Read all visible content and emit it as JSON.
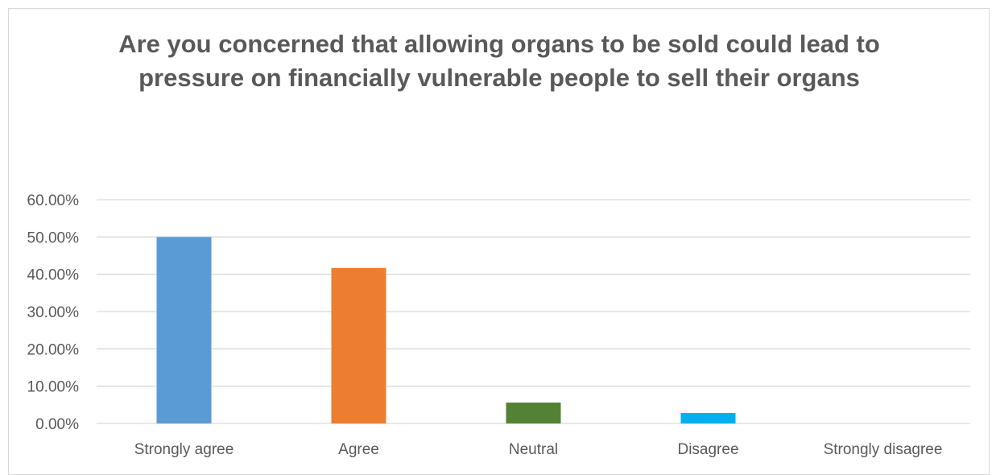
{
  "chart_data": {
    "type": "bar",
    "title": "Are you concerned that allowing organs to be sold could lead to pressure on financially vulnerable people to sell their organs",
    "categories": [
      "Strongly agree",
      "Agree",
      "Neutral",
      "Disagree",
      "Strongly disagree"
    ],
    "values": [
      50.0,
      41.7,
      5.6,
      2.8,
      0.0
    ],
    "colors": [
      "#5b9bd5",
      "#ed7d31",
      "#548235",
      "#00b0f0",
      "#a5a5a5"
    ],
    "ylim": [
      0,
      60
    ],
    "yticks": [
      0,
      10,
      20,
      30,
      40,
      50,
      60
    ],
    "ytick_labels": [
      "0.00%",
      "10.00%",
      "20.00%",
      "30.00%",
      "40.00%",
      "50.00%",
      "60.00%"
    ],
    "xlabel": "",
    "ylabel": "",
    "grid": true,
    "legend": false
  }
}
